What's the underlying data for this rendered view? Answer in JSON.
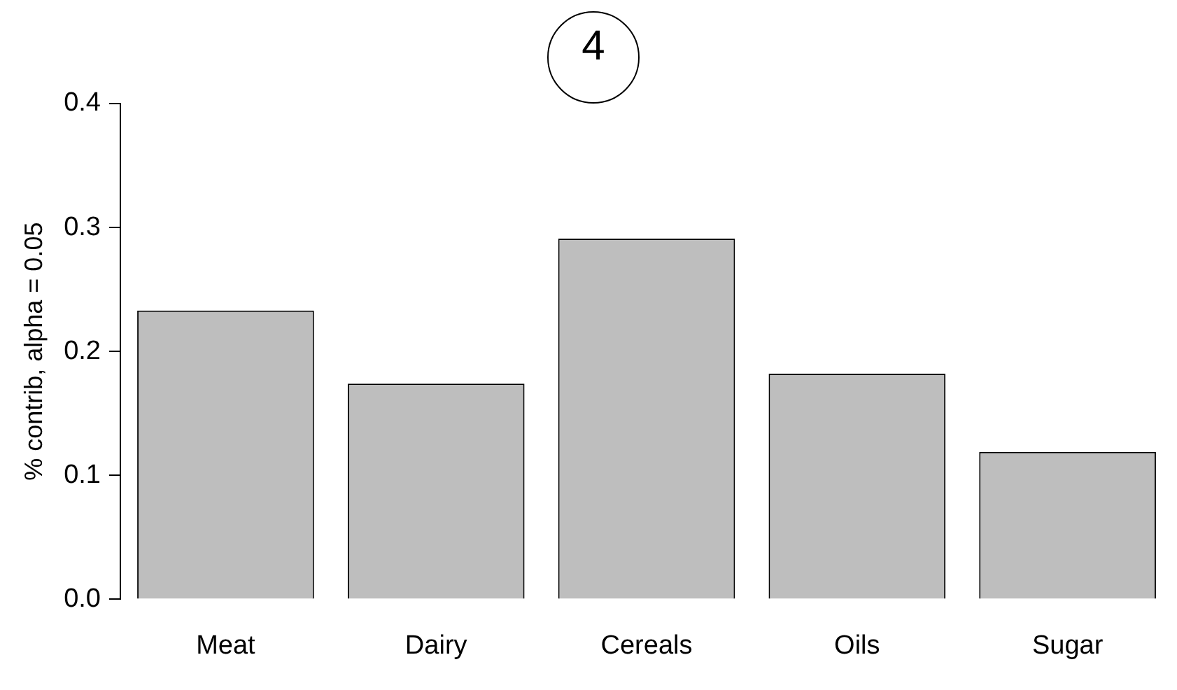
{
  "chart_data": {
    "type": "bar",
    "title": "4",
    "ylabel": "% contrib, alpha = 0.05",
    "categories": [
      "Meat",
      "Dairy",
      "Cereals",
      "Oils",
      "Sugar"
    ],
    "values": [
      0.233,
      0.174,
      0.291,
      0.182,
      0.119
    ],
    "color": "#bebebe",
    "ylim": [
      0,
      0.4
    ],
    "yticks": [
      {
        "value": 0,
        "label": "0.0"
      },
      {
        "value": 0.1,
        "label": "0.1"
      },
      {
        "value": 0.2,
        "label": "0.2"
      },
      {
        "value": 0.3,
        "label": "0.3"
      },
      {
        "value": 0.4,
        "label": "0.4"
      }
    ],
    "grid": false,
    "legend": false
  }
}
